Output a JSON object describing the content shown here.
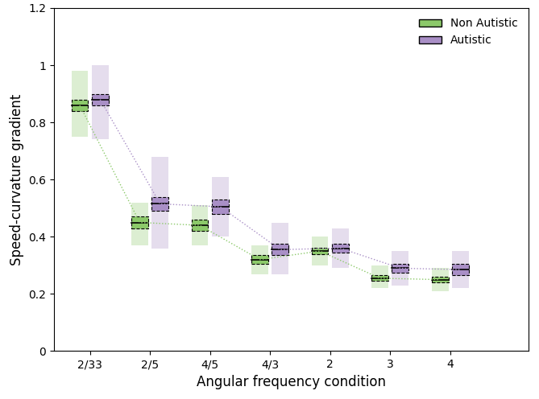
{
  "chart_data": {
    "type": "box",
    "xlabel": "Angular frequency condition",
    "ylabel": "Speed-curvature gradient",
    "categories": [
      "2/33",
      "2/5",
      "4/5",
      "4/3",
      "2",
      "3",
      "4"
    ],
    "ylim": [
      0,
      1.2
    ],
    "yticks": [
      0,
      0.2,
      0.4,
      0.6,
      0.8,
      1,
      1.2
    ],
    "legend": "upper right",
    "grid": false,
    "series": [
      {
        "name": "Non Autistic",
        "color": "#8cc96a",
        "values": [
          0.86,
          0.45,
          0.44,
          0.32,
          0.35,
          0.255,
          0.25
        ],
        "ci_low": [
          0.84,
          0.43,
          0.42,
          0.305,
          0.338,
          0.245,
          0.24
        ],
        "ci_high": [
          0.88,
          0.47,
          0.46,
          0.335,
          0.362,
          0.265,
          0.26
        ],
        "sd_low": [
          0.75,
          0.37,
          0.37,
          0.27,
          0.3,
          0.22,
          0.21
        ],
        "sd_high": [
          0.98,
          0.52,
          0.51,
          0.37,
          0.4,
          0.3,
          0.29
        ]
      },
      {
        "name": "Autistic",
        "color": "#a98fc6",
        "values": [
          0.88,
          0.515,
          0.505,
          0.355,
          0.36,
          0.29,
          0.285
        ],
        "ci_low": [
          0.86,
          0.49,
          0.48,
          0.335,
          0.345,
          0.275,
          0.265
        ],
        "ci_high": [
          0.9,
          0.54,
          0.53,
          0.375,
          0.375,
          0.305,
          0.305
        ],
        "sd_low": [
          0.74,
          0.36,
          0.4,
          0.27,
          0.29,
          0.23,
          0.22
        ],
        "sd_high": [
          1.0,
          0.68,
          0.61,
          0.45,
          0.43,
          0.35,
          0.35
        ]
      }
    ]
  }
}
